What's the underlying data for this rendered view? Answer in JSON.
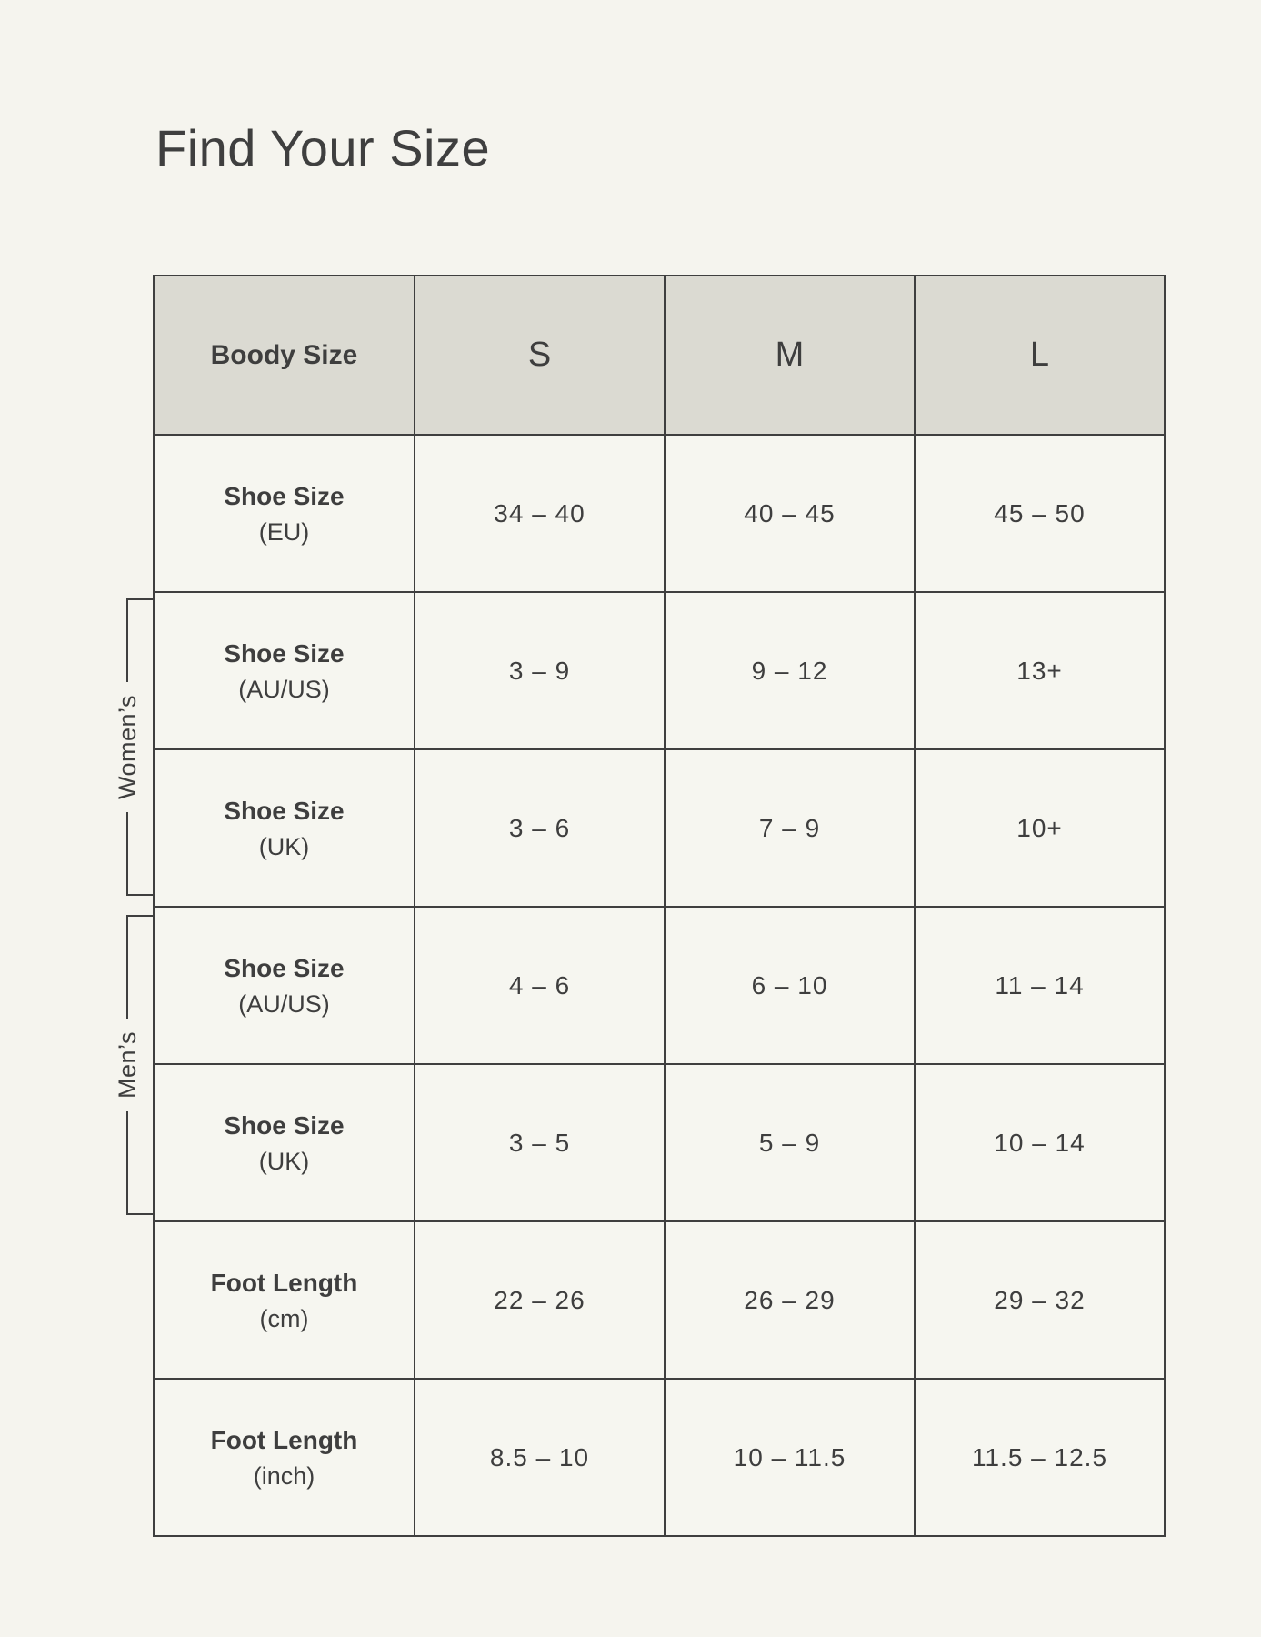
{
  "page": {
    "title": "Find Your Size",
    "background_color": "#F5F4EE",
    "header_background_color": "#DBDAD2",
    "cell_background_color": "#F6F6F0",
    "border_color": "#3F3F3F",
    "text_color": "#3E3E3E"
  },
  "table": {
    "header": {
      "label": "Boody Size",
      "sizes": [
        "S",
        "M",
        "L"
      ]
    },
    "rows": [
      {
        "group": "",
        "label": "Shoe Size",
        "unit": "(EU)",
        "values": [
          "34 – 40",
          "40 – 45",
          "45 – 50"
        ]
      },
      {
        "group": "womens",
        "label": "Shoe Size",
        "unit": "(AU/US)",
        "values": [
          "3 – 9",
          "9 – 12",
          "13+"
        ]
      },
      {
        "group": "womens",
        "label": "Shoe Size",
        "unit": "(UK)",
        "values": [
          "3 – 6",
          "7 – 9",
          "10+"
        ]
      },
      {
        "group": "mens",
        "label": "Shoe Size",
        "unit": "(AU/US)",
        "values": [
          "4 – 6",
          "6 – 10",
          "11 – 14"
        ]
      },
      {
        "group": "mens",
        "label": "Shoe Size",
        "unit": "(UK)",
        "values": [
          "3 – 5",
          "5 – 9",
          "10 – 14"
        ]
      },
      {
        "group": "",
        "label": "Foot Length",
        "unit": "(cm)",
        "values": [
          "22 – 26",
          "26 – 29",
          "29 – 32"
        ]
      },
      {
        "group": "",
        "label": "Foot Length",
        "unit": "(inch)",
        "values": [
          "8.5 – 10",
          "10 – 11.5",
          "11.5 – 12.5"
        ]
      }
    ]
  },
  "brackets": {
    "womens": "Women’s",
    "mens": "Men’s"
  }
}
